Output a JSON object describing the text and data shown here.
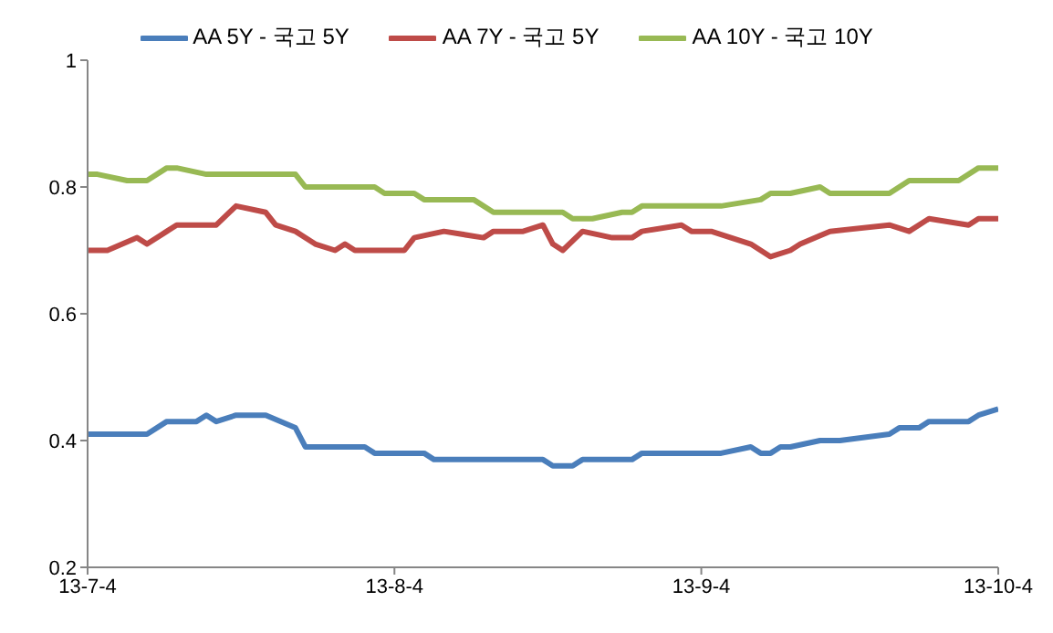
{
  "chart_data": {
    "type": "line",
    "xlim": [
      "--07-04",
      "--10-04"
    ],
    "xticks": [
      {
        "value": "--07-04",
        "label": "13-7-4"
      },
      {
        "value": "--08-04",
        "label": "13-8-4"
      },
      {
        "value": "--09-04",
        "label": "13-9-4"
      },
      {
        "value": "--10-04",
        "label": "13-10-4"
      }
    ],
    "ylim": [
      0.2,
      1
    ],
    "yticks": [
      0.2,
      0.4,
      0.6,
      0.8,
      1
    ],
    "grid": false,
    "legend": "top",
    "marker": "none",
    "line_style": "solid",
    "series": [
      {
        "name": "AA 5Y - 국고 5Y",
        "color": "#4a7ebb",
        "x": [
          "--07-04",
          "--07-10",
          "--07-12",
          "--07-15",
          "--07-16",
          "--07-17",
          "--07-19",
          "--07-22",
          "--07-25",
          "--07-26",
          "--08-01",
          "--08-02",
          "--08-07",
          "--08-08",
          "--08-19",
          "--08-20",
          "--08-22",
          "--08-23",
          "--08-28",
          "--08-29",
          "--09-06",
          "--09-09",
          "--09-10",
          "--09-11",
          "--09-12",
          "--09-13",
          "--09-16",
          "--09-18",
          "--09-23",
          "--09-24",
          "--09-26",
          "--09-27",
          "--10-01",
          "--10-02",
          "--10-04"
        ],
        "values": [
          0.41,
          0.41,
          0.43,
          0.43,
          0.44,
          0.43,
          0.44,
          0.44,
          0.42,
          0.39,
          0.39,
          0.38,
          0.38,
          0.37,
          0.37,
          0.36,
          0.36,
          0.37,
          0.37,
          0.38,
          0.38,
          0.39,
          0.38,
          0.38,
          0.39,
          0.39,
          0.4,
          0.4,
          0.41,
          0.42,
          0.42,
          0.43,
          0.43,
          0.44,
          0.45
        ]
      },
      {
        "name": "AA 7Y - 국고 5Y",
        "color": "#be4b48",
        "x": [
          "--07-04",
          "--07-06",
          "--07-09",
          "--07-10",
          "--07-12",
          "--07-13",
          "--07-17",
          "--07-19",
          "--07-22",
          "--07-23",
          "--07-25",
          "--07-27",
          "--07-29",
          "--07-30",
          "--07-31",
          "--08-05",
          "--08-06",
          "--08-09",
          "--08-13",
          "--08-14",
          "--08-17",
          "--08-19",
          "--08-20",
          "--08-21",
          "--08-23",
          "--08-26",
          "--08-28",
          "--08-29",
          "--09-02",
          "--09-03",
          "--09-05",
          "--09-07",
          "--09-09",
          "--09-11",
          "--09-13",
          "--09-14",
          "--09-17",
          "--09-23",
          "--09-25",
          "--09-27",
          "--10-01",
          "--10-02",
          "--10-04"
        ],
        "values": [
          0.7,
          0.7,
          0.72,
          0.71,
          0.73,
          0.74,
          0.74,
          0.77,
          0.76,
          0.74,
          0.73,
          0.71,
          0.7,
          0.71,
          0.7,
          0.7,
          0.72,
          0.73,
          0.72,
          0.73,
          0.73,
          0.74,
          0.71,
          0.7,
          0.73,
          0.72,
          0.72,
          0.73,
          0.74,
          0.73,
          0.73,
          0.72,
          0.71,
          0.69,
          0.7,
          0.71,
          0.73,
          0.74,
          0.73,
          0.75,
          0.74,
          0.75,
          0.75
        ]
      },
      {
        "name": "AA 10Y - 국고 10Y",
        "color": "#98b954",
        "x": [
          "--07-04",
          "--07-05",
          "--07-08",
          "--07-10",
          "--07-12",
          "--07-13",
          "--07-16",
          "--07-25",
          "--07-26",
          "--08-02",
          "--08-03",
          "--08-06",
          "--08-07",
          "--08-12",
          "--08-14",
          "--08-21",
          "--08-22",
          "--08-24",
          "--08-27",
          "--08-28",
          "--08-29",
          "--09-06",
          "--09-10",
          "--09-11",
          "--09-13",
          "--09-16",
          "--09-17",
          "--09-23",
          "--09-25",
          "--09-30",
          "--10-02",
          "--10-04"
        ],
        "values": [
          0.82,
          0.82,
          0.81,
          0.81,
          0.83,
          0.83,
          0.82,
          0.82,
          0.8,
          0.8,
          0.79,
          0.79,
          0.78,
          0.78,
          0.76,
          0.76,
          0.75,
          0.75,
          0.76,
          0.76,
          0.77,
          0.77,
          0.78,
          0.79,
          0.79,
          0.8,
          0.79,
          0.79,
          0.81,
          0.81,
          0.83,
          0.83
        ]
      }
    ]
  }
}
